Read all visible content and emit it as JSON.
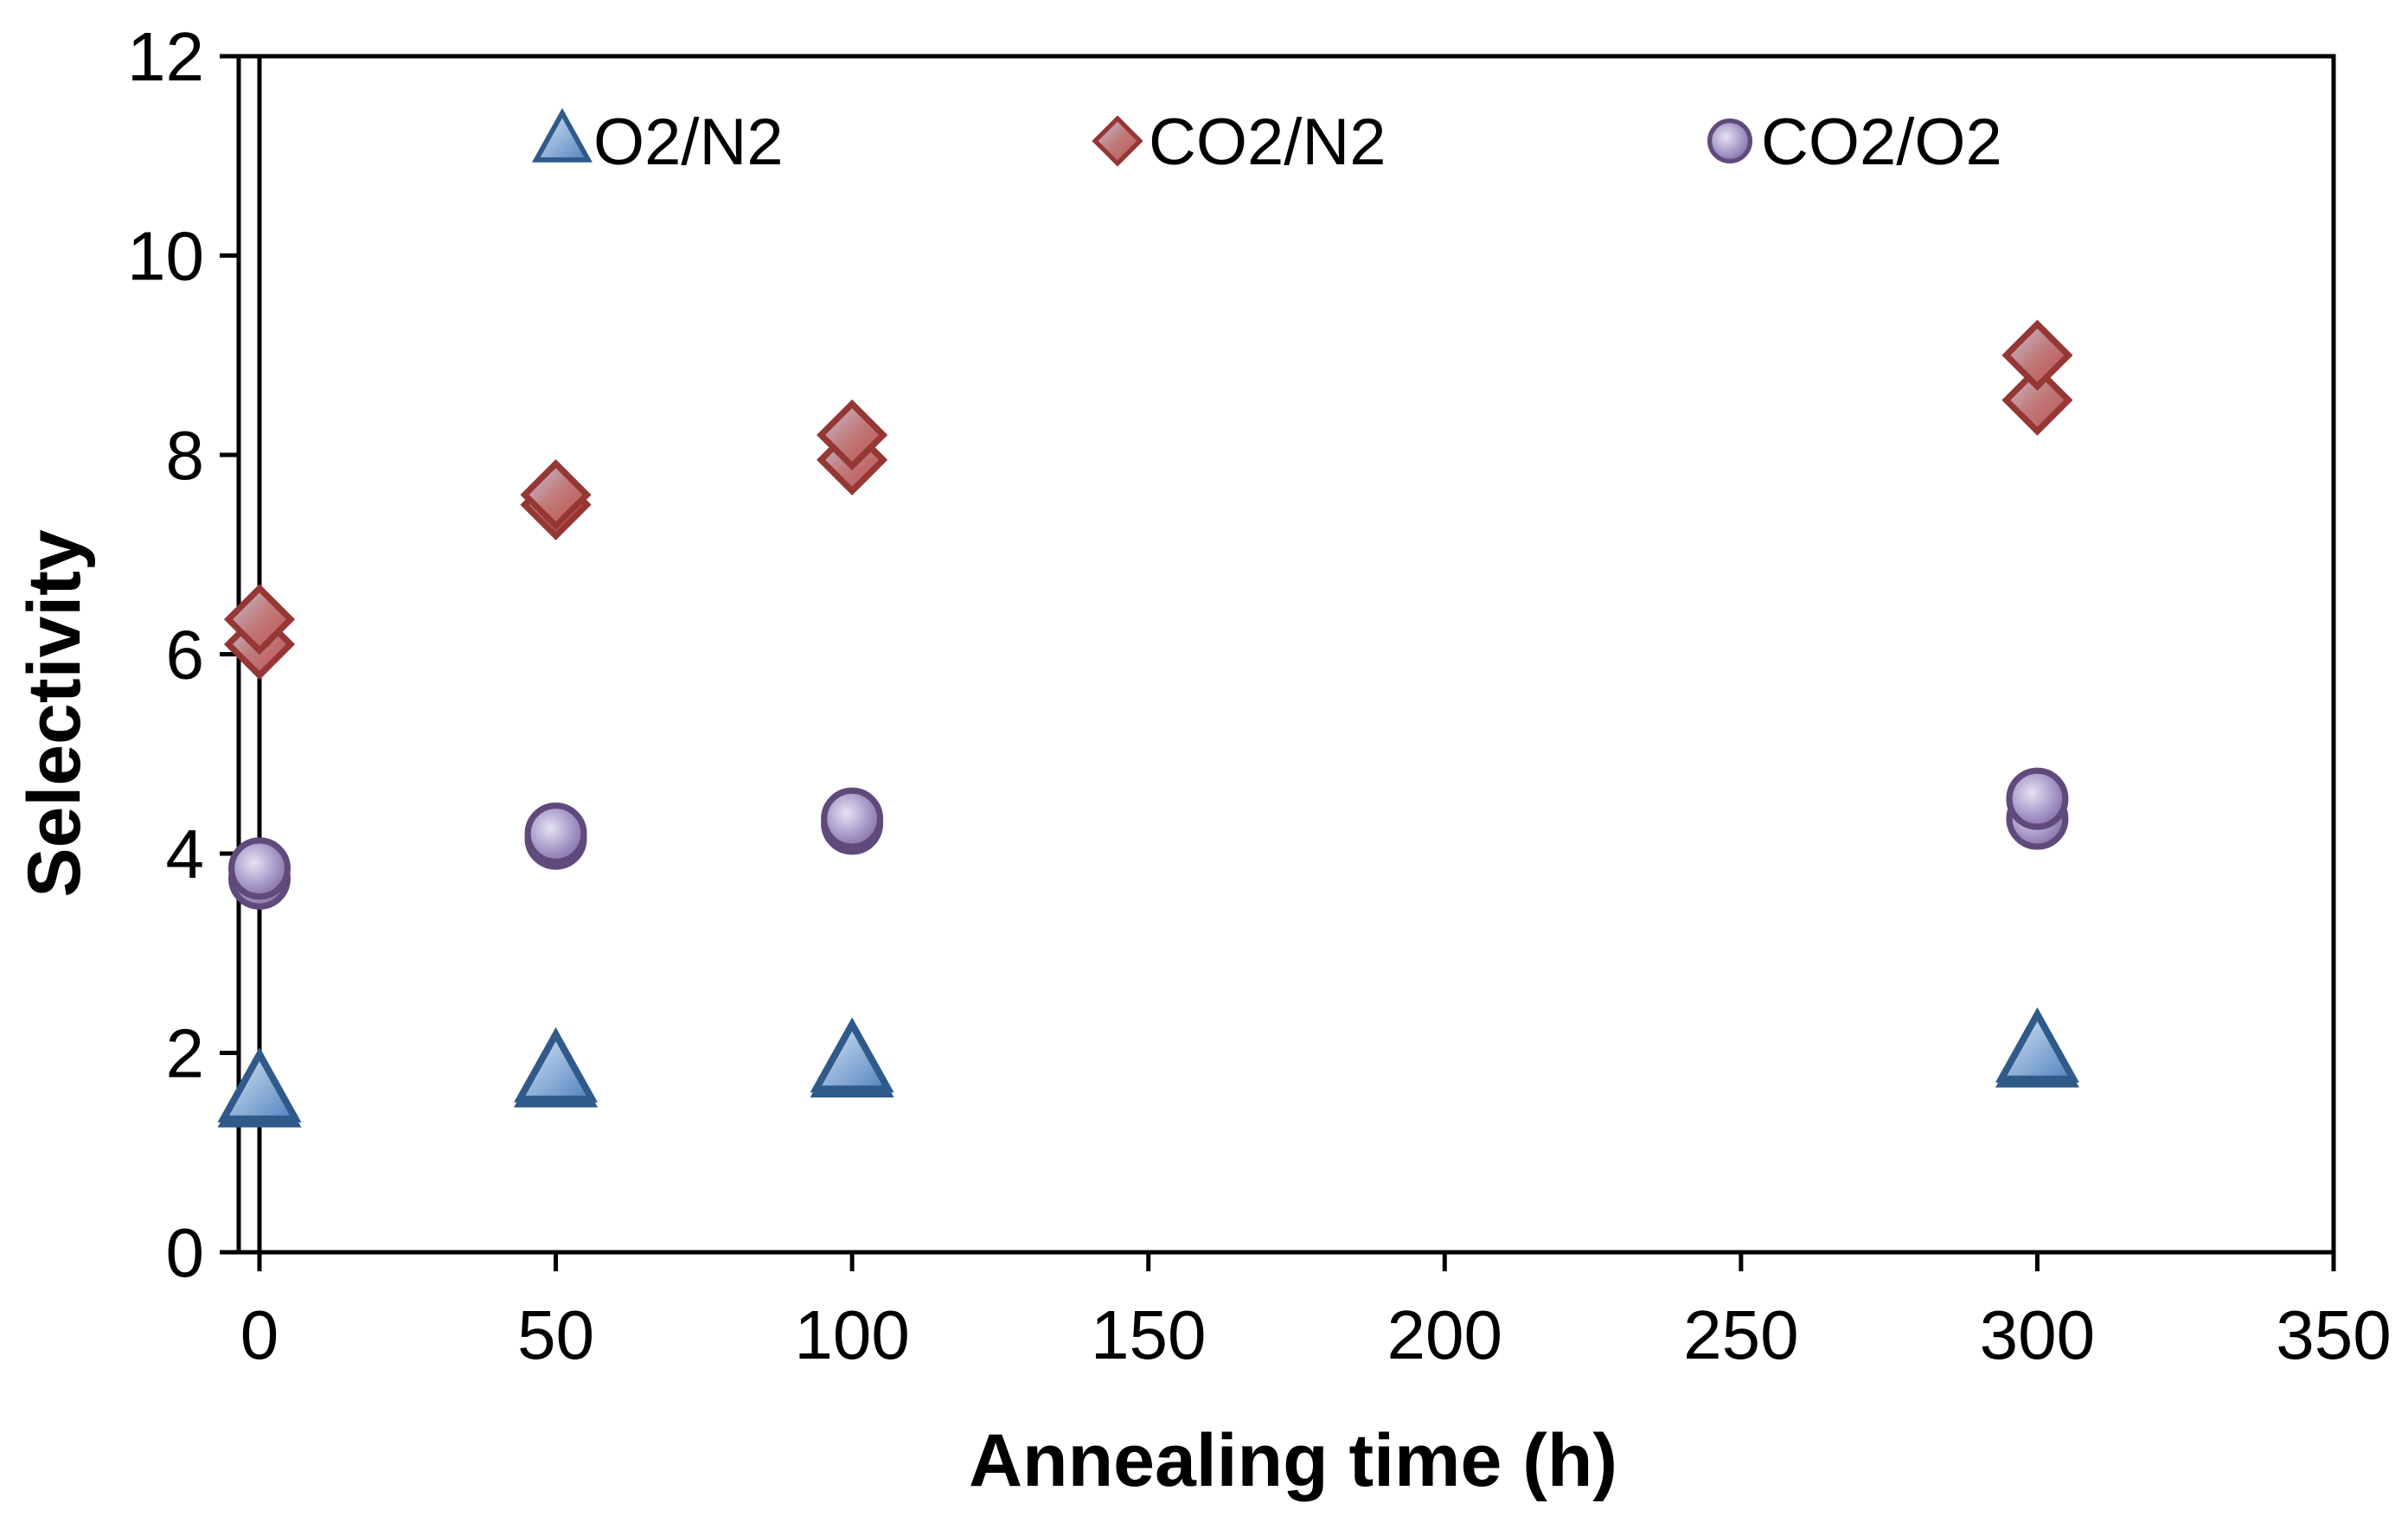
{
  "chart_data": {
    "type": "scatter",
    "title": "",
    "xlabel": "Annealing time (h)",
    "ylabel": "Selectivity",
    "xlim": [
      0,
      350
    ],
    "ylim": [
      0,
      12
    ],
    "xticks": [
      0,
      50,
      100,
      150,
      200,
      250,
      300,
      350
    ],
    "yticks": [
      0,
      2,
      4,
      6,
      8,
      10,
      12
    ],
    "grid": false,
    "legend_position": "top",
    "series": [
      {
        "name": "O2/N2",
        "marker": "triangle",
        "color": "#4f81bd",
        "edge_color": "#2f5a8a",
        "points": [
          {
            "x": 0,
            "y": 1.55
          },
          {
            "x": 0,
            "y": 1.6
          },
          {
            "x": 50,
            "y": 1.75
          },
          {
            "x": 50,
            "y": 1.8
          },
          {
            "x": 100,
            "y": 1.85
          },
          {
            "x": 100,
            "y": 1.9
          },
          {
            "x": 300,
            "y": 1.95
          },
          {
            "x": 300,
            "y": 2.0
          }
        ]
      },
      {
        "name": "CO2/N2",
        "marker": "diamond",
        "color": "#c0504d",
        "edge_color": "#953735",
        "points": [
          {
            "x": 0,
            "y": 6.1
          },
          {
            "x": 0,
            "y": 6.35
          },
          {
            "x": 50,
            "y": 7.5
          },
          {
            "x": 50,
            "y": 7.6
          },
          {
            "x": 100,
            "y": 7.95
          },
          {
            "x": 100,
            "y": 8.2
          },
          {
            "x": 300,
            "y": 8.55
          },
          {
            "x": 300,
            "y": 9.0
          }
        ]
      },
      {
        "name": "CO2/O2",
        "marker": "circle",
        "color": "#8064a2",
        "edge_color": "#604a7b",
        "points": [
          {
            "x": 0,
            "y": 3.75
          },
          {
            "x": 0,
            "y": 3.85
          },
          {
            "x": 50,
            "y": 4.15
          },
          {
            "x": 50,
            "y": 4.2
          },
          {
            "x": 100,
            "y": 4.3
          },
          {
            "x": 100,
            "y": 4.35
          },
          {
            "x": 300,
            "y": 4.35
          },
          {
            "x": 300,
            "y": 4.55
          }
        ]
      }
    ]
  }
}
